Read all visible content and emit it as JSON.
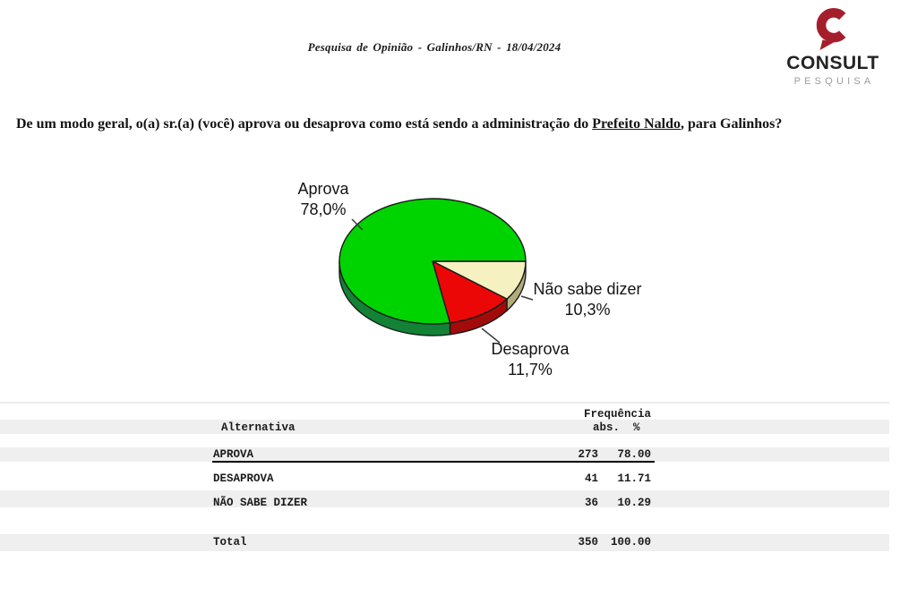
{
  "header": {
    "title": "Pesquisa de Opinião  -  Galinhos/RN  -  18/04/2024"
  },
  "logo": {
    "name": "CONSULT",
    "tagline": "PESQUISA",
    "brand_color": "#A51E2B",
    "name_color": "#232323",
    "tagline_color": "#9D9D9D"
  },
  "question": {
    "prefix": "De um modo geral, o(a) sr.(a) (você) aprova ou desaprova como está sendo a administração do ",
    "emphasis": "Prefeito Naldo",
    "suffix": ", para Galinhos?"
  },
  "chart_data": {
    "type": "pie",
    "style": "3d",
    "title": "",
    "legend_position": "none",
    "start_angle_deg": 0,
    "direction": "clockwise",
    "slices": [
      {
        "label": "Não sabe dizer",
        "value_pct": 10.29,
        "display": "10,3%",
        "color": "#F5F1C0",
        "side_color": "#B1AC7E"
      },
      {
        "label": "Desaprova",
        "value_pct": 11.71,
        "display": "11,7%",
        "color": "#EC0707",
        "side_color": "#A30B0B"
      },
      {
        "label": "Aprova",
        "value_pct": 78.0,
        "display": "78,0%",
        "color": "#00D400",
        "side_color": "#128236"
      }
    ]
  },
  "table": {
    "header_group": "Frequência",
    "columns": {
      "alternative": "Alternativa",
      "abs": "abs.",
      "pct": "%"
    },
    "rows": [
      {
        "label": "APROVA",
        "abs": "273",
        "pct": "78.00",
        "shaded": true,
        "underline": true
      },
      {
        "label": "DESAPROVA",
        "abs": "41",
        "pct": "11.71",
        "shaded": false,
        "underline": false
      },
      {
        "label": "NÃO SABE DIZER",
        "abs": "36",
        "pct": "10.29",
        "shaded": true,
        "underline": false
      }
    ],
    "total": {
      "label": "Total",
      "abs": "350",
      "pct": "100.00",
      "shaded": true
    }
  }
}
